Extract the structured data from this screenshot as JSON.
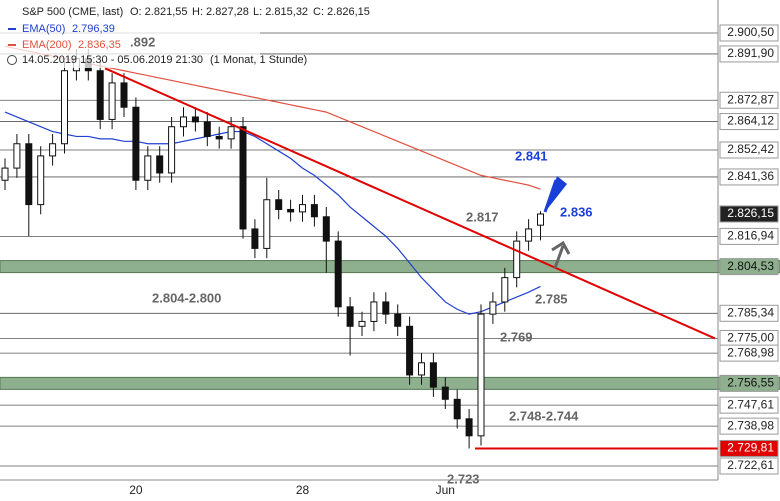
{
  "chart_data": {
    "type": "candlestick",
    "header": {
      "symbol": "S&P 500 (CME, last)",
      "open": "O: 2.821,55",
      "high": "H: 2.827,28",
      "low": "L: 2.815,32",
      "close": "C: 2.826,15",
      "range": "14.05.2019 15:30 - 05.06.2019 21:30",
      "interval": "(1 Monat, 1 Stunde)"
    },
    "categories": [
      null,
      null,
      null,
      null,
      null,
      null,
      null,
      null,
      null,
      null,
      null,
      "20",
      null,
      null,
      null,
      null,
      null,
      null,
      null,
      null,
      null,
      null,
      null,
      null,
      null,
      "28",
      null,
      null,
      null,
      null,
      null,
      null,
      null,
      null,
      null,
      null,
      null,
      "Jun",
      null,
      null,
      null,
      null,
      null,
      null,
      null,
      null
    ],
    "open": [
      2840,
      2845,
      2855,
      2830,
      2850,
      2855,
      2885,
      2890,
      2885,
      2865,
      2880,
      2870,
      2840,
      2850,
      2843,
      2862,
      2866,
      2864,
      2858,
      2857,
      2862,
      2820,
      2812,
      2832,
      2828,
      2827,
      2830,
      2825,
      2815,
      2788,
      2780,
      2782,
      2790,
      2785,
      2780,
      2760,
      2765,
      2755,
      2750,
      2742,
      2735,
      2785,
      2790,
      2800,
      2815,
      2821.55
    ],
    "high": [
      2849,
      2859,
      2859,
      2854,
      2859,
      2889,
      2894,
      2894,
      2889,
      2884,
      2884,
      2874,
      2854,
      2854,
      2866,
      2870,
      2870,
      2868,
      2862,
      2866,
      2866,
      2824,
      2841,
      2836,
      2832,
      2834,
      2834,
      2829,
      2819,
      2792,
      2786,
      2794,
      2794,
      2789,
      2784,
      2769,
      2769,
      2759,
      2754,
      2746,
      2789,
      2794,
      2804,
      2819,
      2824,
      2827.28
    ],
    "low": [
      2836,
      2841,
      2817,
      2826,
      2846,
      2851,
      2881,
      2881,
      2861,
      2861,
      2866,
      2836,
      2836,
      2839,
      2839,
      2858,
      2860,
      2854,
      2853,
      2853,
      2816,
      2808,
      2808,
      2824,
      2823,
      2823,
      2821,
      2802,
      2784,
      2768,
      2776,
      2778,
      2781,
      2776,
      2756,
      2756,
      2751,
      2746,
      2738,
      2729.81,
      2731,
      2781,
      2786,
      2796,
      2811,
      2815.32
    ],
    "close": [
      2845,
      2855,
      2830,
      2850,
      2855,
      2885,
      2890,
      2885,
      2865,
      2880,
      2870,
      2840,
      2850,
      2843,
      2862,
      2866,
      2864,
      2858,
      2857,
      2862,
      2820,
      2812,
      2832,
      2828,
      2827,
      2830,
      2825,
      2815,
      2788,
      2780,
      2782,
      2790,
      2785,
      2780,
      2760,
      2765,
      2755,
      2750,
      2742,
      2735,
      2785,
      2790,
      2800,
      2815,
      2820,
      2826.15
    ],
    "series": [
      {
        "name": "EMA(50)",
        "value_label": "2.796,39",
        "color": "#2040d0",
        "values": [
          2868,
          2866,
          2864,
          2862,
          2860,
          2859,
          2858,
          2858,
          2857,
          2857,
          2856,
          2856,
          2855,
          2855,
          2855,
          2856,
          2857,
          2858,
          2859,
          2860,
          2860,
          2858,
          2855,
          2852,
          2849,
          2845,
          2842,
          2838,
          2834,
          2829,
          2825,
          2821,
          2817,
          2812,
          2806,
          2800,
          2795,
          2790,
          2787,
          2785,
          2786,
          2788,
          2790,
          2792,
          2794,
          2796.39
        ]
      },
      {
        "name": "EMA(200)",
        "value_label": "2.836,35",
        "color": "#e05040",
        "values": [
          2895,
          2894,
          2893,
          2892,
          2891,
          2890,
          2889,
          2888,
          2887,
          2886,
          2885,
          2884,
          2883,
          2882,
          2881,
          2880,
          2879,
          2878,
          2877,
          2876,
          2875,
          2874,
          2873,
          2872,
          2871,
          2870,
          2869,
          2868,
          2866,
          2864,
          2862,
          2860,
          2858,
          2856,
          2854,
          2852,
          2850,
          2848,
          2846,
          2844,
          2842,
          2841,
          2840,
          2839,
          2838,
          2836.35
        ]
      }
    ],
    "ylim": [
      2716.85,
      2914.06
    ],
    "yticks": [
      {
        "value": 2900.5,
        "label": "2.900,50"
      },
      {
        "value": 2891.9,
        "label": "2.891,90"
      },
      {
        "value": 2872.87,
        "label": "2.872,87"
      },
      {
        "value": 2864.12,
        "label": "2.864,12"
      },
      {
        "value": 2852.42,
        "label": "2.852,42"
      },
      {
        "value": 2841.36,
        "label": "2.841,36"
      },
      {
        "value": 2816.94,
        "label": "2.816,94"
      },
      {
        "value": 2785.34,
        "label": "2.785,34"
      },
      {
        "value": 2775,
        "label": "2.775,00"
      },
      {
        "value": 2768.98,
        "label": "2.768,98"
      },
      {
        "value": 2747.61,
        "label": "2.747,61"
      },
      {
        "value": 2738.98,
        "label": "2.738,98"
      },
      {
        "value": 2722.61,
        "label": "2.722,61"
      }
    ],
    "zones": [
      {
        "value": 2804.53,
        "label": "2.804,53"
      },
      {
        "value": 2756.55,
        "label": "2.756,55"
      }
    ],
    "last_price": {
      "value": 2826.15,
      "label": "2.826,15"
    },
    "support": {
      "value": 2729.81,
      "label": "2.729,81"
    },
    "trendline": [
      2886,
      2775
    ],
    "annotations": {
      "a2841": "2.841",
      "a2836": "2.836",
      "a2817": "2.817",
      "a2804": "2.804-2.800",
      "a2785": "2.785",
      "a2769": "2.769",
      "a2748": "2.748-2.744",
      "a2723": "2.723",
      "a2892": ".892"
    }
  }
}
